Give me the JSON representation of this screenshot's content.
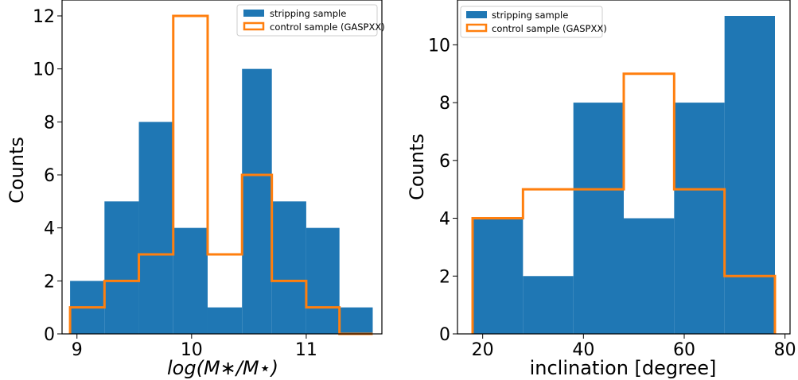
{
  "chart_data": [
    {
      "type": "bar",
      "subtype": "histogram",
      "xlabel": "log(M∗/M⋆)",
      "ylabel": "Counts",
      "xlim": [
        8.87,
        11.66
      ],
      "ylim": [
        0,
        12.6
      ],
      "xticks": [
        9,
        10,
        11
      ],
      "yticks": [
        0,
        2,
        4,
        6,
        8,
        10,
        12
      ],
      "legend_position": "top-right",
      "grid": false,
      "bin_edges": [
        8.94,
        9.24,
        9.54,
        9.84,
        10.14,
        10.44,
        10.7,
        11.0,
        11.29,
        11.58
      ],
      "series": [
        {
          "name": "stripping sample",
          "style": "filled",
          "color": "#1f77b4",
          "values": [
            2,
            5,
            8,
            4,
            1,
            10,
            5,
            4,
            1
          ]
        },
        {
          "name": "control sample (GASPXX)",
          "style": "step",
          "color": "#ff7f0e",
          "values": [
            1,
            2,
            3,
            12,
            3,
            6,
            2,
            1,
            0
          ]
        }
      ]
    },
    {
      "type": "bar",
      "subtype": "histogram",
      "xlabel": "inclination [degree]",
      "ylabel": "Counts",
      "xlim": [
        15,
        81
      ],
      "ylim": [
        0,
        11.55
      ],
      "xticks": [
        20,
        40,
        60,
        80
      ],
      "yticks": [
        0,
        2,
        4,
        6,
        8,
        10
      ],
      "legend_position": "top-left",
      "grid": false,
      "bin_edges": [
        18,
        28,
        38,
        48,
        58,
        68,
        78
      ],
      "series": [
        {
          "name": "stripping sample",
          "style": "filled",
          "color": "#1f77b4",
          "values": [
            4,
            2,
            8,
            4,
            8,
            11
          ]
        },
        {
          "name": "control sample (GASPXX)",
          "style": "step",
          "color": "#ff7f0e",
          "values": [
            4,
            5,
            5,
            9,
            5,
            2
          ]
        }
      ]
    }
  ]
}
